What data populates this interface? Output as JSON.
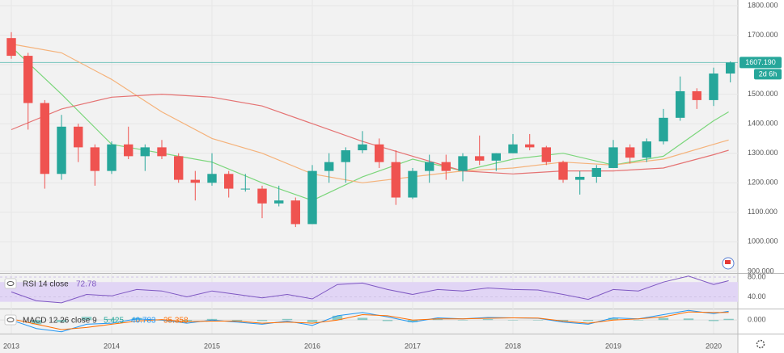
{
  "chart_data": {
    "type": "candlestick",
    "x": [
      2013.0,
      2013.167,
      2013.333,
      2013.5,
      2013.667,
      2013.833,
      2014.0,
      2014.167,
      2014.333,
      2014.5,
      2014.667,
      2014.833,
      2015.0,
      2015.167,
      2015.333,
      2015.5,
      2015.667,
      2015.833,
      2016.0,
      2016.167,
      2016.333,
      2016.5,
      2016.667,
      2016.833,
      2017.0,
      2017.167,
      2017.333,
      2017.5,
      2017.667,
      2017.833,
      2018.0,
      2018.167,
      2018.333,
      2018.5,
      2018.667,
      2018.833,
      2019.0,
      2019.167,
      2019.333,
      2019.5,
      2019.667,
      2019.833,
      2020.0,
      2020.167
    ],
    "open": [
      1690,
      1630,
      1470,
      1230,
      1390,
      1320,
      1240,
      1330,
      1290,
      1320,
      1290,
      1210,
      1200,
      1230,
      1180,
      1180,
      1130,
      1140,
      1060,
      1240,
      1270,
      1310,
      1330,
      1270,
      1150,
      1240,
      1270,
      1240,
      1290,
      1275,
      1300,
      1330,
      1320,
      1270,
      1210,
      1220,
      1250,
      1320,
      1285,
      1340,
      1420,
      1510,
      1480,
      1570
    ],
    "high": [
      1710,
      1640,
      1480,
      1430,
      1400,
      1330,
      1340,
      1390,
      1330,
      1345,
      1300,
      1240,
      1300,
      1240,
      1230,
      1190,
      1190,
      1150,
      1260,
      1300,
      1320,
      1375,
      1350,
      1310,
      1250,
      1295,
      1295,
      1300,
      1360,
      1300,
      1365,
      1365,
      1325,
      1275,
      1240,
      1260,
      1345,
      1330,
      1350,
      1450,
      1560,
      1520,
      1590,
      1611
    ],
    "low": [
      1620,
      1380,
      1180,
      1210,
      1270,
      1190,
      1230,
      1280,
      1240,
      1280,
      1200,
      1140,
      1190,
      1150,
      1170,
      1080,
      1120,
      1050,
      1060,
      1200,
      1200,
      1300,
      1250,
      1125,
      1145,
      1200,
      1210,
      1205,
      1260,
      1240,
      1300,
      1310,
      1260,
      1200,
      1160,
      1200,
      1250,
      1265,
      1270,
      1330,
      1410,
      1450,
      1460,
      1540
    ],
    "close": [
      1630,
      1470,
      1230,
      1390,
      1320,
      1240,
      1330,
      1290,
      1320,
      1290,
      1210,
      1200,
      1230,
      1180,
      1180,
      1130,
      1140,
      1060,
      1240,
      1270,
      1310,
      1330,
      1270,
      1150,
      1240,
      1270,
      1240,
      1290,
      1275,
      1300,
      1330,
      1320,
      1270,
      1210,
      1220,
      1250,
      1320,
      1285,
      1340,
      1420,
      1510,
      1480,
      1570,
      1607
    ],
    "up_color": "#26a69a",
    "down_color": "#ef5350",
    "xlim": [
      2012.887,
      2020.242
    ],
    "xticks": [
      2013,
      2014,
      2015,
      2016,
      2017,
      2018,
      2019,
      2020
    ],
    "ylim": [
      897,
      1819
    ],
    "yticks": [
      {
        "value": 900,
        "label": "900.000"
      },
      {
        "value": 1000,
        "label": "1000.000"
      },
      {
        "value": 1100,
        "label": "1100.000"
      },
      {
        "value": 1200,
        "label": "1200.000"
      },
      {
        "value": 1300,
        "label": "1300.000"
      },
      {
        "value": 1400,
        "label": "1400.000"
      },
      {
        "value": 1500,
        "label": "1500.000"
      },
      {
        "value": 1600,
        "label": "1600.000"
      },
      {
        "value": 1700,
        "label": "1700.000"
      },
      {
        "value": 1800,
        "label": "1800.000"
      }
    ],
    "moving_averages": [
      {
        "color": "#7bd67b",
        "x": [
          2013.0,
          2013.5,
          2014.0,
          2014.5,
          2015.0,
          2015.5,
          2016.0,
          2016.5,
          2017.0,
          2017.5,
          2018.0,
          2018.5,
          2019.0,
          2019.5,
          2020.0,
          2020.15
        ],
        "values": [
          1660,
          1500,
          1330,
          1300,
          1270,
          1200,
          1140,
          1220,
          1280,
          1240,
          1280,
          1300,
          1260,
          1290,
          1410,
          1440
        ]
      },
      {
        "color": "#f5b27a",
        "x": [
          2013.0,
          2013.5,
          2014.0,
          2014.5,
          2015.0,
          2015.5,
          2016.0,
          2016.5,
          2017.0,
          2017.5,
          2018.0,
          2018.5,
          2019.0,
          2019.5,
          2020.0,
          2020.15
        ],
        "values": [
          1670,
          1640,
          1550,
          1440,
          1350,
          1300,
          1230,
          1200,
          1220,
          1240,
          1250,
          1270,
          1260,
          1280,
          1330,
          1345
        ]
      },
      {
        "color": "#e57373",
        "x": [
          2013.0,
          2013.5,
          2014.0,
          2014.5,
          2015.0,
          2015.5,
          2016.0,
          2016.5,
          2017.0,
          2017.5,
          2018.0,
          2018.5,
          2019.0,
          2019.5,
          2020.0,
          2020.15
        ],
        "values": [
          1380,
          1450,
          1490,
          1500,
          1490,
          1460,
          1400,
          1340,
          1290,
          1240,
          1230,
          1240,
          1240,
          1250,
          1295,
          1310
        ]
      }
    ],
    "price_line": {
      "value": 1607.19,
      "label": "1607.190",
      "countdown": "2d 6h",
      "color": "#26a69a"
    },
    "rsi": {
      "type": "line",
      "label": "RSI 14 close",
      "color": "#7e57c2",
      "x": [
        2013.0,
        2013.25,
        2013.5,
        2013.75,
        2014.0,
        2014.25,
        2014.5,
        2014.75,
        2015.0,
        2015.25,
        2015.5,
        2015.75,
        2016.0,
        2016.25,
        2016.5,
        2016.75,
        2017.0,
        2017.25,
        2017.5,
        2017.75,
        2018.0,
        2018.25,
        2018.5,
        2018.75,
        2019.0,
        2019.25,
        2019.5,
        2019.75,
        2020.0,
        2020.15
      ],
      "values": [
        50,
        32,
        28,
        45,
        42,
        55,
        52,
        40,
        52,
        45,
        38,
        45,
        36,
        65,
        68,
        55,
        45,
        55,
        52,
        58,
        55,
        54,
        45,
        35,
        55,
        52,
        70,
        82,
        65,
        72.78
      ],
      "ylim": [
        18,
        85
      ],
      "yticks": [
        {
          "value": 40,
          "label": "40.00"
        },
        {
          "value": 80,
          "label": "80.00"
        }
      ],
      "band": [
        30,
        70
      ]
    },
    "macd": {
      "type": "line",
      "label": "MACD 12 26 close 9",
      "x": [
        2013.0,
        2013.25,
        2013.5,
        2013.75,
        2014.0,
        2014.25,
        2014.5,
        2014.75,
        2015.0,
        2015.25,
        2015.5,
        2015.75,
        2016.0,
        2016.25,
        2016.5,
        2016.75,
        2017.0,
        2017.25,
        2017.5,
        2017.75,
        2018.0,
        2018.25,
        2018.5,
        2018.75,
        2019.0,
        2019.25,
        2019.5,
        2019.75,
        2020.0,
        2020.15
      ],
      "histogram": {
        "color": "#26a69a",
        "values": [
          -5,
          -20,
          -10,
          15,
          5,
          10,
          -2,
          -7,
          5,
          -5,
          -5,
          5,
          -10,
          20,
          10,
          -5,
          -10,
          5,
          0,
          4,
          0,
          -1,
          -5,
          -5,
          10,
          0,
          10,
          7,
          -5,
          5.425
        ]
      },
      "series": [
        {
          "color": "#2196f3",
          "values": [
            0,
            -40,
            -55,
            -20,
            -15,
            5,
            0,
            -15,
            0,
            -10,
            -20,
            -5,
            -25,
            20,
            35,
            15,
            -10,
            10,
            5,
            12,
            10,
            8,
            -10,
            -20,
            10,
            5,
            25,
            45,
            30,
            40.783
          ]
        },
        {
          "color": "#ff6d00",
          "values": [
            5,
            -20,
            -45,
            -35,
            -20,
            -5,
            2,
            -8,
            -5,
            -5,
            -15,
            -10,
            -15,
            0,
            25,
            20,
            0,
            5,
            5,
            8,
            10,
            9,
            -5,
            -15,
            0,
            5,
            15,
            38,
            35,
            35.358
          ]
        }
      ],
      "ylim": [
        -60,
        46
      ],
      "yticks": [
        {
          "value": 0,
          "label": "0.000"
        }
      ]
    }
  }
}
